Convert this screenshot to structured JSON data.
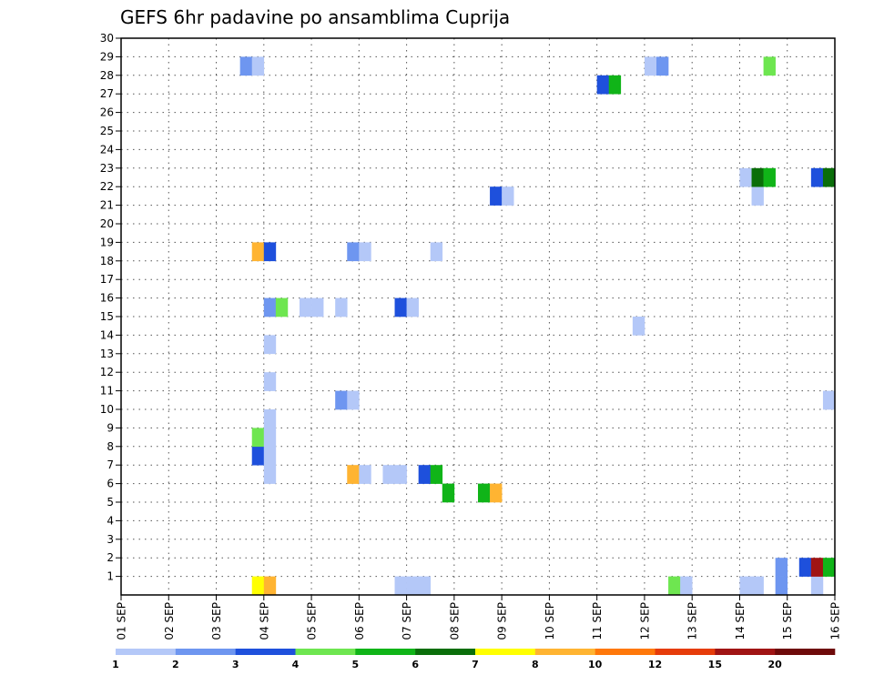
{
  "chart_data": {
    "type": "heatmap",
    "title": "GEFS 6hr padavine po ansamblima Cuprija",
    "xlabel": "",
    "ylabel": "",
    "x_ticks": [
      "01 SEP",
      "02 SEP",
      "03 SEP",
      "04 SEP",
      "05 SEP",
      "06 SEP",
      "07 SEP",
      "08 SEP",
      "09 SEP",
      "10 SEP",
      "11 SEP",
      "12 SEP",
      "13 SEP",
      "14 SEP",
      "15 SEP",
      "16 SEP"
    ],
    "y_ticks": [
      "1",
      "2",
      "3",
      "4",
      "5",
      "6",
      "7",
      "8",
      "9",
      "10",
      "11",
      "12",
      "13",
      "14",
      "15",
      "16",
      "17",
      "18",
      "19",
      "20",
      "21",
      "22",
      "23",
      "24",
      "25",
      "26",
      "27",
      "28",
      "29",
      "30"
    ],
    "xlim": [
      0,
      60
    ],
    "ylim": [
      0,
      30
    ],
    "grid": true,
    "legend_position": "bottom",
    "colorbar": {
      "labels": [
        "1",
        "2",
        "3",
        "4",
        "5",
        "6",
        "7",
        "8",
        "10",
        "12",
        "15",
        "20"
      ],
      "colors": [
        "#b4c8f8",
        "#6e96f0",
        "#1e50dc",
        "#6ee650",
        "#10b418",
        "#0a6e0a",
        "#ffff00",
        "#ffb432",
        "#ff780a",
        "#e63c0a",
        "#a01414",
        "#6e0a0a"
      ]
    },
    "cells": [
      {
        "t": 55,
        "m": 0,
        "c": 1
      },
      {
        "t": 11,
        "m": 0,
        "c": 6
      },
      {
        "t": 12,
        "m": 0,
        "c": 7
      },
      {
        "t": 24,
        "m": 0,
        "c": 0
      },
      {
        "t": 25,
        "m": 0,
        "c": 0
      },
      {
        "t": 23,
        "m": 0,
        "c": 0
      },
      {
        "t": 52,
        "m": 0,
        "c": 0
      },
      {
        "t": 53,
        "m": 0,
        "c": 0
      },
      {
        "t": 46,
        "m": 0,
        "c": 3
      },
      {
        "t": 47,
        "m": 0,
        "c": 0
      },
      {
        "t": 58,
        "m": 0,
        "c": 0
      },
      {
        "t": 55,
        "m": 1,
        "c": 1
      },
      {
        "t": 57,
        "m": 1,
        "c": 2
      },
      {
        "t": 58,
        "m": 1,
        "c": 10
      },
      {
        "t": 59,
        "m": 1,
        "c": 4
      },
      {
        "t": 27,
        "m": 5,
        "c": 4
      },
      {
        "t": 30,
        "m": 5,
        "c": 4
      },
      {
        "t": 31,
        "m": 5,
        "c": 7
      },
      {
        "t": 12,
        "m": 6,
        "c": 0
      },
      {
        "t": 19,
        "m": 6,
        "c": 7
      },
      {
        "t": 20,
        "m": 6,
        "c": 0
      },
      {
        "t": 22,
        "m": 6,
        "c": 0
      },
      {
        "t": 23,
        "m": 6,
        "c": 0
      },
      {
        "t": 25,
        "m": 6,
        "c": 2
      },
      {
        "t": 26,
        "m": 6,
        "c": 4
      },
      {
        "t": 11,
        "m": 7,
        "c": 2
      },
      {
        "t": 12,
        "m": 7,
        "c": 0
      },
      {
        "t": 11,
        "m": 8,
        "c": 3
      },
      {
        "t": 12,
        "m": 8,
        "c": 0
      },
      {
        "t": 12,
        "m": 9,
        "c": 0
      },
      {
        "t": 18,
        "m": 10,
        "c": 1
      },
      {
        "t": 19,
        "m": 10,
        "c": 0
      },
      {
        "t": 59,
        "m": 10,
        "c": 0
      },
      {
        "t": 12,
        "m": 11,
        "c": 0
      },
      {
        "t": 12,
        "m": 13,
        "c": 0
      },
      {
        "t": 43,
        "m": 14,
        "c": 0
      },
      {
        "t": 12,
        "m": 15,
        "c": 1
      },
      {
        "t": 13,
        "m": 15,
        "c": 3
      },
      {
        "t": 15,
        "m": 15,
        "c": 0
      },
      {
        "t": 16,
        "m": 15,
        "c": 0
      },
      {
        "t": 18,
        "m": 15,
        "c": 0
      },
      {
        "t": 23,
        "m": 15,
        "c": 2
      },
      {
        "t": 24,
        "m": 15,
        "c": 0
      },
      {
        "t": 11,
        "m": 18,
        "c": 7
      },
      {
        "t": 12,
        "m": 18,
        "c": 2
      },
      {
        "t": 19,
        "m": 18,
        "c": 1
      },
      {
        "t": 20,
        "m": 18,
        "c": 0
      },
      {
        "t": 26,
        "m": 18,
        "c": 0
      },
      {
        "t": 31,
        "m": 21,
        "c": 2
      },
      {
        "t": 32,
        "m": 21,
        "c": 0
      },
      {
        "t": 53,
        "m": 21,
        "c": 0
      },
      {
        "t": 52,
        "m": 22,
        "c": 0
      },
      {
        "t": 53,
        "m": 22,
        "c": 5
      },
      {
        "t": 54,
        "m": 22,
        "c": 4
      },
      {
        "t": 58,
        "m": 22,
        "c": 2
      },
      {
        "t": 59,
        "m": 22,
        "c": 5
      },
      {
        "t": 40,
        "m": 27,
        "c": 2
      },
      {
        "t": 41,
        "m": 27,
        "c": 4
      },
      {
        "t": 10,
        "m": 28,
        "c": 1
      },
      {
        "t": 11,
        "m": 28,
        "c": 0
      },
      {
        "t": 44,
        "m": 28,
        "c": 0
      },
      {
        "t": 45,
        "m": 28,
        "c": 1
      },
      {
        "t": 54,
        "m": 28,
        "c": 3
      }
    ]
  }
}
